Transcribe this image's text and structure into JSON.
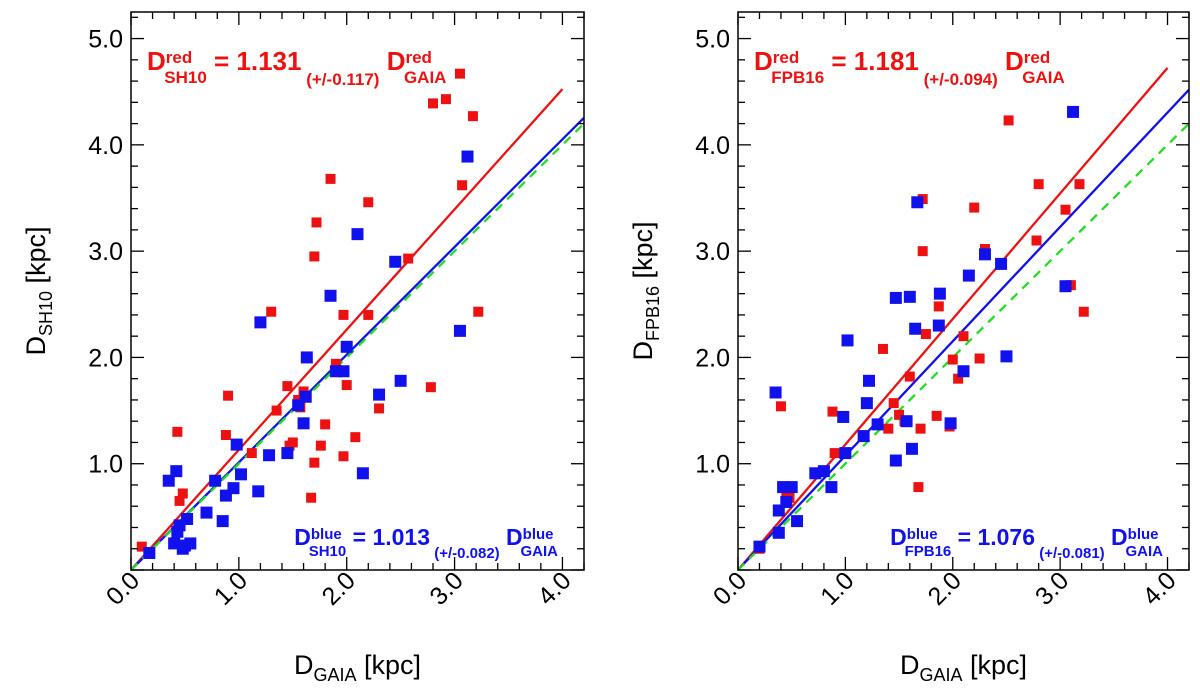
{
  "chart_data": [
    {
      "type": "scatter",
      "id": "left",
      "xlabel": {
        "main": "D",
        "sub": "GAIA",
        "unit": " [kpc]"
      },
      "ylabel": {
        "main": "D",
        "sub": "SH10",
        "unit": " [kpc]"
      },
      "xlim": [
        0.0,
        4.2
      ],
      "ylim": [
        0.0,
        5.25
      ],
      "x_ticks": [
        0.0,
        1.0,
        2.0,
        3.0,
        4.0
      ],
      "x_tick_labels": [
        "0.0",
        "1.0",
        "2.0",
        "3.0",
        "4.0"
      ],
      "y_ticks": [
        1.0,
        2.0,
        3.0,
        4.0,
        5.0
      ],
      "y_tick_labels": [
        "1.0",
        "2.0",
        "3.0",
        "4.0",
        "5.0"
      ],
      "grid": false,
      "colors": {
        "red": "#ee1111",
        "blue": "#1111ee",
        "one_to_one": "#22dd22"
      },
      "lines": [
        {
          "name": "red fit",
          "slope": 1.131,
          "x_range": [
            0.0,
            4.0
          ],
          "color": "#ee1111",
          "dashed": false
        },
        {
          "name": "blue fit",
          "slope": 1.013,
          "x_range": [
            0.0,
            4.2
          ],
          "color": "#1111ee",
          "dashed": false
        },
        {
          "name": "one-to-one",
          "slope": 1.0,
          "x_range": [
            0.0,
            4.2
          ],
          "color": "#22dd22",
          "dashed": true
        }
      ],
      "equations": [
        {
          "color_key": "red",
          "corner": "top-left",
          "y_main": "D",
          "y_sup": "red",
          "y_sub": "SH10",
          "text": " = 1.131",
          "err": "(+/-0.117)",
          "x_main": " D",
          "x_sup": "red",
          "x_sub": "GAIA"
        },
        {
          "color_key": "blue",
          "corner": "bottom-right",
          "y_main": "D",
          "y_sup": "blue",
          "y_sub": "SH10",
          "text": " = 1.013",
          "err": "(+/-0.082)",
          "x_main": " D",
          "x_sup": "blue",
          "x_sub": "GAIA"
        }
      ],
      "series": [
        {
          "name": "red",
          "color": "#ee1111",
          "points": [
            [
              0.1,
              0.22
            ],
            [
              0.45,
              0.65
            ],
            [
              0.48,
              0.72
            ],
            [
              0.43,
              1.3
            ],
            [
              0.88,
              1.27
            ],
            [
              0.9,
              1.64
            ],
            [
              1.12,
              1.1
            ],
            [
              1.3,
              2.43
            ],
            [
              1.35,
              1.5
            ],
            [
              1.45,
              1.73
            ],
            [
              1.47,
              1.17
            ],
            [
              1.5,
              1.2
            ],
            [
              1.55,
              1.6
            ],
            [
              1.57,
              1.53
            ],
            [
              1.6,
              1.68
            ],
            [
              1.67,
              0.68
            ],
            [
              1.7,
              1.01
            ],
            [
              1.7,
              2.95
            ],
            [
              1.72,
              3.27
            ],
            [
              1.76,
              1.17
            ],
            [
              1.8,
              1.37
            ],
            [
              1.85,
              3.68
            ],
            [
              1.9,
              1.94
            ],
            [
              1.97,
              1.07
            ],
            [
              1.97,
              2.4
            ],
            [
              2.0,
              1.74
            ],
            [
              2.08,
              1.25
            ],
            [
              2.2,
              2.4
            ],
            [
              2.2,
              3.46
            ],
            [
              2.3,
              1.52
            ],
            [
              2.57,
              2.93
            ],
            [
              2.78,
              1.72
            ],
            [
              2.8,
              4.39
            ],
            [
              2.92,
              4.43
            ],
            [
              3.05,
              4.67
            ],
            [
              3.07,
              3.62
            ],
            [
              3.17,
              4.27
            ],
            [
              3.22,
              2.43
            ]
          ]
        },
        {
          "name": "blue",
          "color": "#1111ee",
          "points": [
            [
              0.17,
              0.16
            ],
            [
              0.35,
              0.84
            ],
            [
              0.4,
              0.25
            ],
            [
              0.42,
              0.93
            ],
            [
              0.43,
              0.36
            ],
            [
              0.45,
              0.42
            ],
            [
              0.48,
              0.2
            ],
            [
              0.5,
              0.23
            ],
            [
              0.52,
              0.48
            ],
            [
              0.55,
              0.25
            ],
            [
              0.7,
              0.54
            ],
            [
              0.78,
              0.84
            ],
            [
              0.85,
              0.46
            ],
            [
              0.88,
              0.7
            ],
            [
              0.95,
              0.77
            ],
            [
              0.98,
              1.18
            ],
            [
              1.02,
              0.9
            ],
            [
              1.18,
              0.74
            ],
            [
              1.2,
              2.33
            ],
            [
              1.28,
              1.08
            ],
            [
              1.45,
              1.1
            ],
            [
              1.55,
              1.55
            ],
            [
              1.6,
              1.38
            ],
            [
              1.62,
              1.63
            ],
            [
              1.63,
              2.0
            ],
            [
              1.85,
              2.58
            ],
            [
              1.9,
              1.87
            ],
            [
              1.97,
              1.87
            ],
            [
              2.0,
              2.1
            ],
            [
              2.1,
              3.16
            ],
            [
              2.15,
              0.91
            ],
            [
              2.3,
              1.65
            ],
            [
              2.45,
              2.9
            ],
            [
              2.5,
              1.78
            ],
            [
              3.05,
              2.25
            ],
            [
              3.12,
              3.89
            ]
          ]
        }
      ]
    },
    {
      "type": "scatter",
      "id": "right",
      "xlabel": {
        "main": "D",
        "sub": "GAIA",
        "unit": " [kpc]"
      },
      "ylabel": {
        "main": "D",
        "sub": "FPB16",
        "unit": " [kpc]"
      },
      "xlim": [
        0.0,
        4.2
      ],
      "ylim": [
        0.0,
        5.25
      ],
      "x_ticks": [
        0.0,
        1.0,
        2.0,
        3.0,
        4.0
      ],
      "x_tick_labels": [
        "0.0",
        "1.0",
        "2.0",
        "3.0",
        "4.0"
      ],
      "y_ticks": [
        1.0,
        2.0,
        3.0,
        4.0,
        5.0
      ],
      "y_tick_labels": [
        "1.0",
        "2.0",
        "3.0",
        "4.0",
        "5.0"
      ],
      "grid": false,
      "colors": {
        "red": "#ee1111",
        "blue": "#1111ee",
        "one_to_one": "#22dd22"
      },
      "lines": [
        {
          "name": "red fit",
          "slope": 1.181,
          "x_range": [
            0.0,
            4.0
          ],
          "color": "#ee1111",
          "dashed": false
        },
        {
          "name": "blue fit",
          "slope": 1.076,
          "x_range": [
            0.0,
            4.2
          ],
          "color": "#1111ee",
          "dashed": false
        },
        {
          "name": "one-to-one",
          "slope": 1.0,
          "x_range": [
            0.0,
            4.2
          ],
          "color": "#22dd22",
          "dashed": true
        }
      ],
      "equations": [
        {
          "color_key": "red",
          "corner": "top-left",
          "y_main": "D",
          "y_sup": "red",
          "y_sub": "FPB16",
          "text": " = 1.181",
          "err": "(+/-0.094)",
          "x_main": " D",
          "x_sup": "red",
          "x_sub": "GAIA"
        },
        {
          "color_key": "blue",
          "corner": "bottom-right",
          "y_main": "D",
          "y_sup": "blue",
          "y_sub": "FPB16",
          "text": " = 1.076",
          "err": "(+/-0.081)",
          "x_main": " D",
          "x_sup": "blue",
          "x_sub": "GAIA"
        }
      ],
      "series": [
        {
          "name": "red",
          "color": "#ee1111",
          "points": [
            [
              0.2,
              0.2
            ],
            [
              0.4,
              1.54
            ],
            [
              0.45,
              0.73
            ],
            [
              0.48,
              0.68
            ],
            [
              0.88,
              1.49
            ],
            [
              0.9,
              1.1
            ],
            [
              1.35,
              2.08
            ],
            [
              1.4,
              1.33
            ],
            [
              1.45,
              1.57
            ],
            [
              1.5,
              1.46
            ],
            [
              1.55,
              1.4
            ],
            [
              1.6,
              1.82
            ],
            [
              1.68,
              0.78
            ],
            [
              1.7,
              1.33
            ],
            [
              1.72,
              3.0
            ],
            [
              1.72,
              3.49
            ],
            [
              1.75,
              2.22
            ],
            [
              1.85,
              1.45
            ],
            [
              1.87,
              2.48
            ],
            [
              1.97,
              1.35
            ],
            [
              2.0,
              1.98
            ],
            [
              2.05,
              1.8
            ],
            [
              2.1,
              2.2
            ],
            [
              2.2,
              3.41
            ],
            [
              2.25,
              1.99
            ],
            [
              2.3,
              3.02
            ],
            [
              2.52,
              4.23
            ],
            [
              2.78,
              3.1
            ],
            [
              2.8,
              3.63
            ],
            [
              3.05,
              3.39
            ],
            [
              3.1,
              2.68
            ],
            [
              3.18,
              3.63
            ],
            [
              3.22,
              2.43
            ]
          ]
        },
        {
          "name": "blue",
          "color": "#1111ee",
          "points": [
            [
              0.2,
              0.22
            ],
            [
              0.35,
              1.67
            ],
            [
              0.38,
              0.35
            ],
            [
              0.38,
              0.56
            ],
            [
              0.42,
              0.78
            ],
            [
              0.45,
              0.64
            ],
            [
              0.5,
              0.78
            ],
            [
              0.55,
              0.46
            ],
            [
              0.72,
              0.91
            ],
            [
              0.8,
              0.93
            ],
            [
              0.87,
              0.78
            ],
            [
              0.98,
              1.44
            ],
            [
              1.0,
              1.1
            ],
            [
              1.02,
              2.16
            ],
            [
              1.17,
              1.26
            ],
            [
              1.2,
              1.57
            ],
            [
              1.22,
              1.78
            ],
            [
              1.3,
              1.37
            ],
            [
              1.47,
              1.03
            ],
            [
              1.47,
              2.56
            ],
            [
              1.57,
              1.4
            ],
            [
              1.6,
              2.57
            ],
            [
              1.62,
              1.14
            ],
            [
              1.65,
              2.27
            ],
            [
              1.67,
              3.46
            ],
            [
              1.87,
              2.3
            ],
            [
              1.88,
              2.6
            ],
            [
              1.98,
              1.38
            ],
            [
              2.1,
              1.87
            ],
            [
              2.15,
              2.77
            ],
            [
              2.3,
              2.97
            ],
            [
              2.45,
              2.88
            ],
            [
              2.5,
              2.01
            ],
            [
              3.05,
              2.67
            ],
            [
              3.12,
              4.31
            ]
          ]
        }
      ]
    }
  ]
}
